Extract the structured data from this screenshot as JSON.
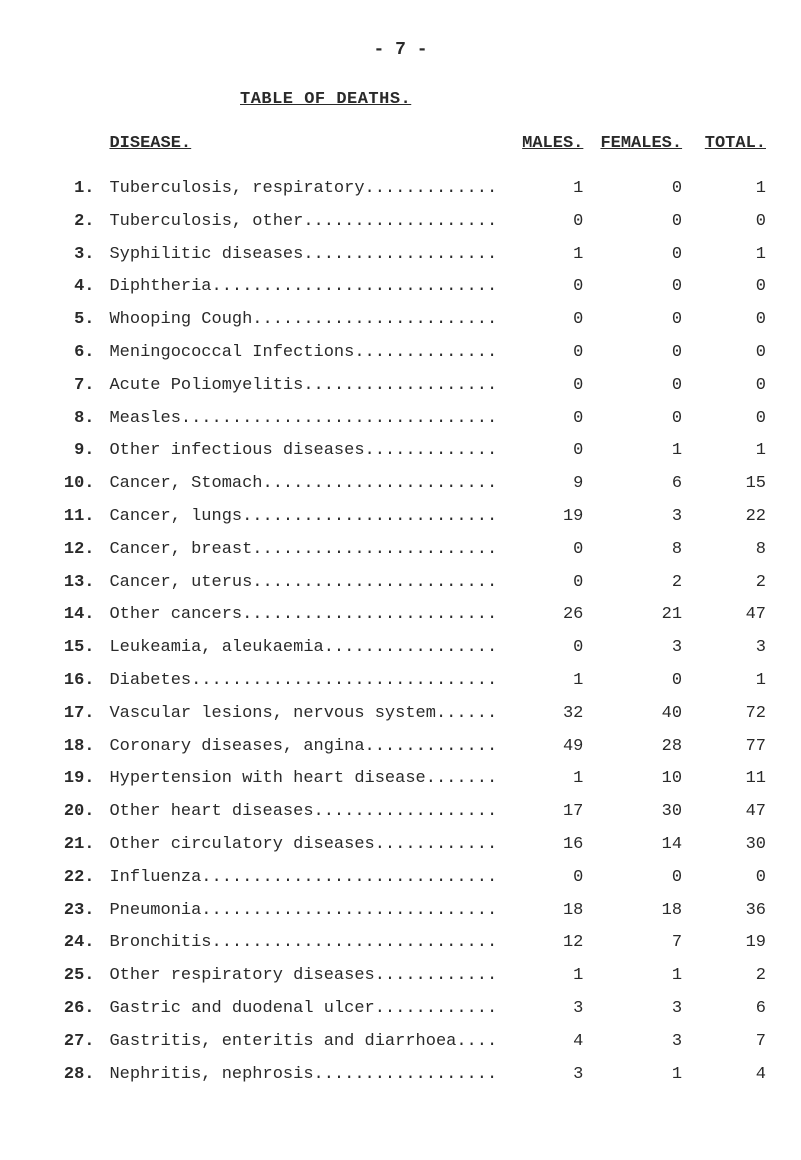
{
  "page_number_text": "- 7 -",
  "title": "TABLE OF DEATHS.",
  "headers": {
    "disease": "DISEASE.",
    "males": "MALES.",
    "females": "FEMALES.",
    "total": "TOTAL."
  },
  "dot_fill_width": 38,
  "rows": [
    {
      "n": "1.",
      "label": "Tuberculosis, respiratory",
      "males": "1",
      "females": "0",
      "total": "1"
    },
    {
      "n": "2.",
      "label": "Tuberculosis, other",
      "males": "0",
      "females": "0",
      "total": "0"
    },
    {
      "n": "3.",
      "label": "Syphilitic diseases",
      "males": "1",
      "females": "0",
      "total": "1"
    },
    {
      "n": "4.",
      "label": "Diphtheria",
      "males": "0",
      "females": "0",
      "total": "0"
    },
    {
      "n": "5.",
      "label": "Whooping Cough",
      "males": "0",
      "females": "0",
      "total": "0"
    },
    {
      "n": "6.",
      "label": "Meningococcal Infections",
      "males": "0",
      "females": "0",
      "total": "0"
    },
    {
      "n": "7.",
      "label": "Acute Poliomyelitis",
      "males": "0",
      "females": "0",
      "total": "0"
    },
    {
      "n": "8.",
      "label": "Measles",
      "males": "0",
      "females": "0",
      "total": "0"
    },
    {
      "n": "9.",
      "label": "Other infectious diseases",
      "males": "0",
      "females": "1",
      "total": "1"
    },
    {
      "n": "10.",
      "label": "Cancer, Stomach",
      "males": "9",
      "females": "6",
      "total": "15"
    },
    {
      "n": "11.",
      "label": "Cancer, lungs",
      "males": "19",
      "females": "3",
      "total": "22"
    },
    {
      "n": "12.",
      "label": "Cancer, breast",
      "males": "0",
      "females": "8",
      "total": "8"
    },
    {
      "n": "13.",
      "label": "Cancer, uterus",
      "males": "0",
      "females": "2",
      "total": "2"
    },
    {
      "n": "14.",
      "label": "Other cancers",
      "males": "26",
      "females": "21",
      "total": "47"
    },
    {
      "n": "15.",
      "label": "Leukeamia, aleukaemia",
      "males": "0",
      "females": "3",
      "total": "3"
    },
    {
      "n": "16.",
      "label": "Diabetes",
      "males": "1",
      "females": "0",
      "total": "1"
    },
    {
      "n": "17.",
      "label": "Vascular lesions, nervous system",
      "males": "32",
      "females": "40",
      "total": "72"
    },
    {
      "n": "18.",
      "label": "Coronary diseases, angina",
      "males": "49",
      "females": "28",
      "total": "77"
    },
    {
      "n": "19.",
      "label": "Hypertension with heart disease",
      "males": "1",
      "females": "10",
      "total": "11"
    },
    {
      "n": "20.",
      "label": "Other heart diseases",
      "males": "17",
      "females": "30",
      "total": "47"
    },
    {
      "n": "21.",
      "label": "Other circulatory diseases",
      "males": "16",
      "females": "14",
      "total": "30"
    },
    {
      "n": "22.",
      "label": "Influenza",
      "males": "0",
      "females": "0",
      "total": "0"
    },
    {
      "n": "23.",
      "label": "Pneumonia",
      "males": "18",
      "females": "18",
      "total": "36"
    },
    {
      "n": "24.",
      "label": "Bronchitis",
      "males": "12",
      "females": "7",
      "total": "19"
    },
    {
      "n": "25.",
      "label": "Other respiratory diseases",
      "males": "1",
      "females": "1",
      "total": "2"
    },
    {
      "n": "26.",
      "label": "Gastric and duodenal ulcer.",
      "males": "3",
      "females": "3",
      "total": "6"
    },
    {
      "n": "27.",
      "label": "Gastritis, enteritis and diarrhoea",
      "males": "4",
      "females": "3",
      "total": "7"
    },
    {
      "n": "28.",
      "label": "Nephritis, nephrosis",
      "males": "3",
      "females": "1",
      "total": "4"
    }
  ]
}
